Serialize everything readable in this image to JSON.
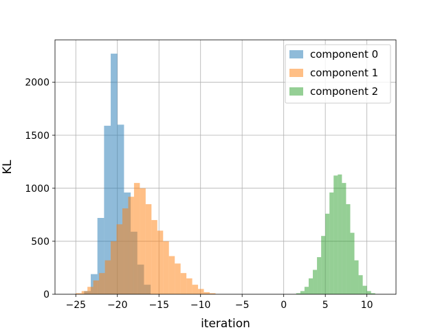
{
  "chart_data": {
    "type": "histogram",
    "xlabel": "iteration",
    "ylabel": "KL",
    "xlim": [
      -27.5,
      13.5
    ],
    "ylim": [
      0,
      2400
    ],
    "xticks": [
      -25,
      -20,
      -15,
      -10,
      -5,
      0,
      5,
      10
    ],
    "xtick_labels": [
      "−25",
      "−20",
      "−15",
      "−10",
      "−5",
      "0",
      "5",
      "10"
    ],
    "yticks": [
      0,
      500,
      1000,
      1500,
      2000
    ],
    "ytick_labels": [
      "0",
      "500",
      "1000",
      "1500",
      "2000"
    ],
    "grid": true,
    "legend_position": "top-right",
    "series": [
      {
        "name": "component 0",
        "color": "#1f77b4",
        "opacity": 0.5,
        "bin_edges": [
          -24.0,
          -23.2,
          -22.4,
          -21.6,
          -20.8,
          -20.0,
          -19.2,
          -18.4,
          -17.6,
          -16.8,
          -16.0
        ],
        "counts": [
          30,
          190,
          720,
          1590,
          2270,
          1600,
          960,
          590,
          280,
          90
        ]
      },
      {
        "name": "component 1",
        "color": "#ff7f0e",
        "opacity": 0.5,
        "bin_edges": [
          -25.0,
          -24.3,
          -23.6,
          -22.9,
          -22.2,
          -21.5,
          -20.8,
          -20.1,
          -19.4,
          -18.7,
          -18.0,
          -17.3,
          -16.6,
          -15.9,
          -15.2,
          -14.5,
          -13.8,
          -13.1,
          -12.4,
          -11.7,
          -11.0,
          -10.3,
          -9.6,
          -8.9,
          -8.2
        ],
        "counts": [
          10,
          30,
          70,
          130,
          200,
          320,
          500,
          660,
          810,
          920,
          1050,
          1000,
          850,
          700,
          600,
          500,
          360,
          290,
          200,
          150,
          90,
          50,
          20,
          10
        ]
      },
      {
        "name": "component 2",
        "color": "#2ca02c",
        "opacity": 0.5,
        "bin_edges": [
          1.5,
          2.0,
          2.5,
          3.0,
          3.5,
          4.0,
          4.5,
          5.0,
          5.5,
          6.0,
          6.5,
          7.0,
          7.5,
          8.0,
          8.5,
          9.0,
          9.5,
          10.0,
          10.5,
          11.0
        ],
        "counts": [
          10,
          30,
          70,
          150,
          230,
          350,
          550,
          760,
          960,
          1120,
          1130,
          1050,
          850,
          580,
          320,
          180,
          80,
          30,
          10
        ]
      }
    ]
  }
}
